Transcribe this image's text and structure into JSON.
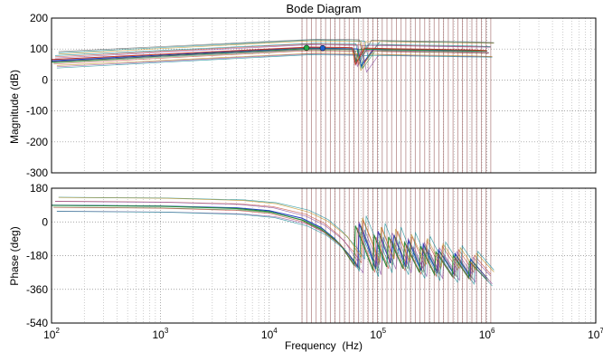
{
  "chart_data": [
    {
      "type": "line",
      "panel": "magnitude",
      "title": "Bode Diagram",
      "xlabel": "",
      "ylabel": "Magnitude (dB)",
      "xscale": "log",
      "xlim": [
        100,
        10000000
      ],
      "ylim": [
        -300,
        200
      ],
      "yticks": [
        200,
        100,
        0,
        -100,
        -200,
        -300
      ],
      "grid": true,
      "series": [
        {
          "x": [
            100,
            1000,
            10000,
            22000,
            30000,
            40000,
            55000,
            65000,
            70000,
            90000,
            110000,
            150000,
            200000,
            300000,
            500000,
            800000,
            1000000
          ],
          "values": [
            62,
            80,
            98,
            104,
            103,
            102,
            101,
            100,
            45,
            99,
            100,
            99,
            98,
            97,
            96,
            95,
            94
          ]
        },
        {
          "x": [
            100,
            1000,
            10000,
            21000,
            40000,
            60000,
            63000,
            66000,
            80000,
            120000,
            160000,
            250000,
            400000,
            600000,
            1000000
          ],
          "values": [
            58,
            77,
            95,
            101,
            100,
            99,
            55,
            98,
            99,
            98,
            97,
            96,
            95,
            94,
            93
          ]
        },
        {
          "x": [
            100,
            1000,
            10000,
            24000,
            50000,
            58000,
            62000,
            75000,
            100000,
            140000,
            200000,
            350000,
            700000,
            1000000
          ],
          "values": [
            66,
            83,
            100,
            106,
            105,
            104,
            50,
            103,
            102,
            101,
            100,
            99,
            97,
            95
          ]
        }
      ],
      "markers": [
        {
          "x": 22000,
          "y": 104,
          "color": "#22aa44"
        },
        {
          "x": 31000,
          "y": 103,
          "color": "#1f5fd0"
        }
      ]
    },
    {
      "type": "line",
      "panel": "phase",
      "title": "",
      "xlabel": "Frequency  (Hz)",
      "ylabel": "Phase (deg)",
      "xscale": "log",
      "xlim": [
        100,
        10000000
      ],
      "ylim": [
        -540,
        180
      ],
      "yticks": [
        180,
        0,
        -180,
        -360,
        -540
      ],
      "xticks": [
        100,
        1000,
        10000,
        100000,
        1000000,
        10000000
      ],
      "grid": true,
      "series": [
        {
          "x": [
            100,
            1000,
            5000,
            10000,
            20000,
            30000,
            40000,
            55000,
            65000,
            67000,
            80000,
            95000,
            100000,
            130000,
            140000,
            180000,
            190000,
            250000,
            260000,
            350000,
            360000,
            500000,
            510000,
            700000,
            710000,
            1000000
          ],
          "values": [
            89,
            85,
            75,
            60,
            20,
            -30,
            -90,
            -180,
            -240,
            -10,
            -120,
            -250,
            -50,
            -220,
            -70,
            -240,
            -100,
            -260,
            -120,
            -270,
            -150,
            -280,
            -170,
            -290,
            -200,
            -300
          ]
        },
        {
          "x": [
            100,
            1000,
            5000,
            10000,
            20000,
            30000,
            45000,
            60000,
            62000,
            75000,
            90000,
            92000,
            120000,
            125000,
            170000,
            175000,
            240000,
            245000,
            330000,
            340000,
            480000,
            490000,
            680000,
            690000,
            1000000
          ],
          "values": [
            88,
            84,
            72,
            55,
            10,
            -40,
            -120,
            -230,
            -20,
            -140,
            -260,
            -70,
            -240,
            -80,
            -250,
            -110,
            -270,
            -130,
            -280,
            -160,
            -290,
            -180,
            -300,
            -210,
            -310
          ]
        }
      ]
    }
  ]
}
